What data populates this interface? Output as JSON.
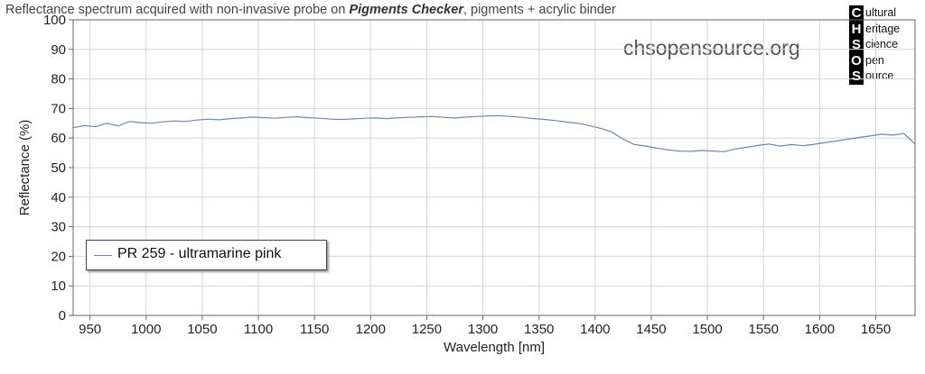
{
  "title_prefix": "Reflectance spectrum acquired with non-invasive probe on ",
  "title_bold": "Pigments Checker",
  "title_suffix": ", pigments + acrylic binder",
  "watermark": "chsopensource.org",
  "logo": {
    "letters": [
      "C",
      "H",
      "S",
      "O",
      "S"
    ],
    "words": [
      "ultural",
      "eritage",
      "cience",
      "pen",
      "ource"
    ]
  },
  "chart_data": {
    "type": "line",
    "xlabel": "Wavelength [nm]",
    "ylabel": "Reflectance (%)",
    "xlim": [
      935,
      1685
    ],
    "ylim": [
      0,
      100
    ],
    "x_ticks": [
      950,
      1000,
      1050,
      1100,
      1150,
      1200,
      1250,
      1300,
      1350,
      1400,
      1450,
      1500,
      1550,
      1600,
      1650
    ],
    "y_ticks": [
      0,
      10,
      20,
      30,
      40,
      50,
      60,
      70,
      80,
      90,
      100
    ],
    "grid": true,
    "legend_position": "bottom-left",
    "series": [
      {
        "name": "PR 259 - ultramarine pink",
        "color": "#7088a8",
        "x": [
          935,
          945,
          955,
          965,
          975,
          985,
          995,
          1005,
          1015,
          1025,
          1035,
          1045,
          1055,
          1065,
          1075,
          1085,
          1095,
          1105,
          1115,
          1125,
          1135,
          1145,
          1155,
          1165,
          1175,
          1185,
          1195,
          1205,
          1215,
          1225,
          1235,
          1245,
          1255,
          1265,
          1275,
          1285,
          1295,
          1305,
          1315,
          1325,
          1335,
          1345,
          1355,
          1365,
          1375,
          1385,
          1395,
          1405,
          1415,
          1425,
          1435,
          1445,
          1455,
          1465,
          1475,
          1485,
          1495,
          1505,
          1515,
          1525,
          1535,
          1545,
          1555,
          1565,
          1575,
          1585,
          1595,
          1605,
          1615,
          1625,
          1635,
          1645,
          1655,
          1665,
          1675,
          1685
        ],
        "y": [
          63.5,
          64.2,
          63.8,
          65.0,
          64.1,
          65.6,
          65.2,
          65.0,
          65.5,
          65.8,
          65.6,
          66.1,
          66.4,
          66.2,
          66.6,
          66.8,
          67.1,
          66.9,
          66.7,
          67.0,
          67.2,
          66.9,
          66.7,
          66.4,
          66.3,
          66.5,
          66.7,
          66.8,
          66.6,
          66.9,
          67.0,
          67.2,
          67.3,
          67.0,
          66.8,
          67.1,
          67.3,
          67.5,
          67.6,
          67.3,
          67.0,
          66.6,
          66.3,
          65.9,
          65.4,
          65.0,
          64.2,
          63.3,
          62.0,
          59.6,
          57.8,
          57.3,
          56.6,
          56.0,
          55.6,
          55.5,
          55.8,
          55.6,
          55.4,
          56.3,
          56.9,
          57.5,
          58.0,
          57.3,
          57.8,
          57.4,
          57.9,
          58.5,
          59.0,
          59.6,
          60.2,
          60.7,
          61.3,
          61.0,
          61.5,
          58.0
        ]
      }
    ]
  }
}
